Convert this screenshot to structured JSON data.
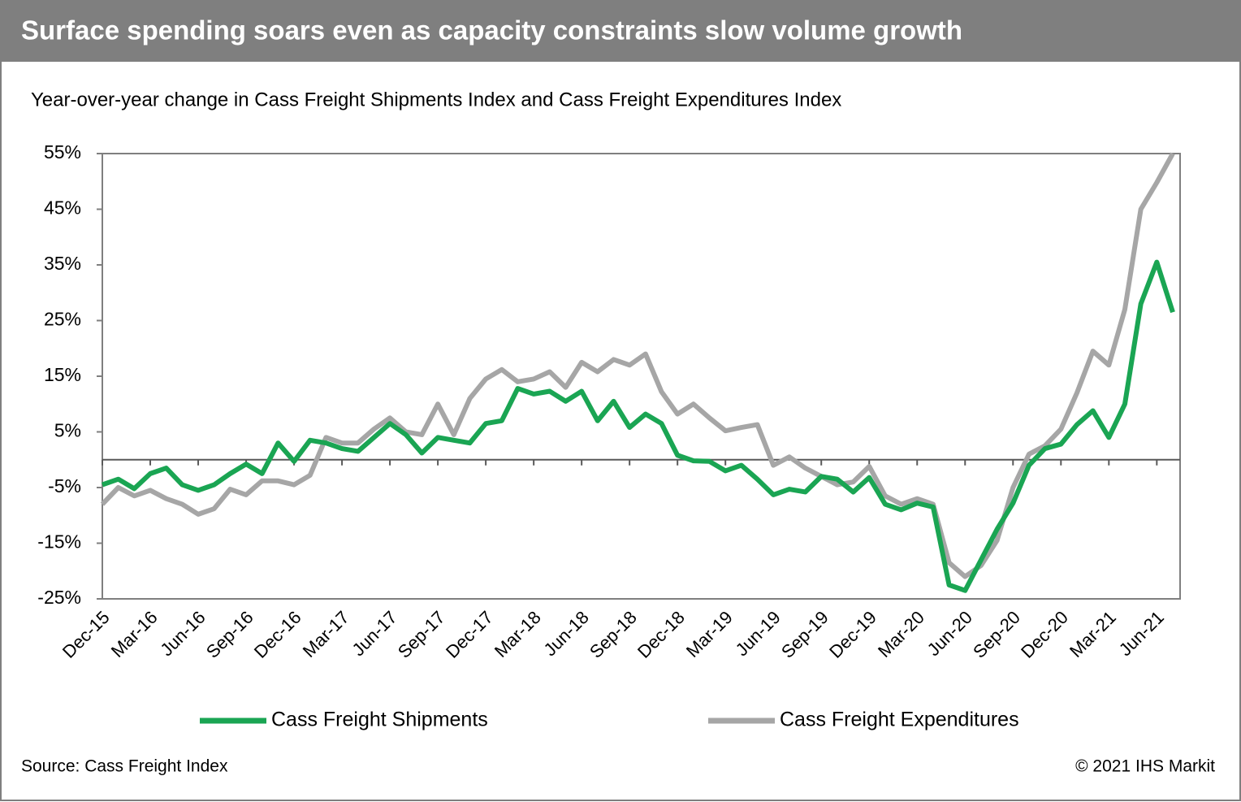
{
  "chart_data": {
    "type": "line",
    "title": "Surface spending soars even as capacity constraints slow volume growth",
    "subtitle": "Year-over-year change in Cass Freight Shipments Index and Cass Freight Expenditures Index",
    "source": "Source: Cass Freight Index",
    "copyright": "© 2021 IHS Markit",
    "categories": [
      "Dec-15",
      null,
      null,
      "Mar-16",
      null,
      null,
      "Jun-16",
      null,
      null,
      "Sep-16",
      null,
      null,
      "Dec-16",
      null,
      null,
      "Mar-17",
      null,
      null,
      "Jun-17",
      null,
      null,
      "Sep-17",
      null,
      null,
      "Dec-17",
      null,
      null,
      "Mar-18",
      null,
      null,
      "Jun-18",
      null,
      null,
      "Sep-18",
      null,
      null,
      "Dec-18",
      null,
      null,
      "Mar-19",
      null,
      null,
      "Jun-19",
      null,
      null,
      "Sep-19",
      null,
      null,
      "Dec-19",
      null,
      null,
      "Mar-20",
      null,
      null,
      "Jun-20",
      null,
      null,
      "Sep-20",
      null,
      null,
      "Dec-20",
      null,
      null,
      "Mar-21",
      null,
      null,
      "Jun-21",
      null
    ],
    "series": [
      {
        "name": "Cass Freight Shipments",
        "color": "#1aa553",
        "values": [
          -4.5,
          -3.5,
          -5.2,
          -2.5,
          -1.5,
          -4.5,
          -5.5,
          -4.5,
          -2.5,
          -0.8,
          -2.5,
          3,
          -0.3,
          3.5,
          3,
          2,
          1.5,
          4,
          6.5,
          4.5,
          1.2,
          4,
          3.5,
          3,
          6.5,
          7,
          12.8,
          11.8,
          12.3,
          10.5,
          12.3,
          7,
          10.5,
          5.8,
          8.2,
          6.5,
          0.8,
          -0.2,
          -0.3,
          -2,
          -1,
          -3.5,
          -6.3,
          -5.3,
          -5.8,
          -3,
          -3.5,
          -5.8,
          -3.2,
          -8,
          -9,
          -7.8,
          -8.5,
          -22.5,
          -23.5,
          -18,
          -12.5,
          -7.8,
          -1,
          2,
          2.8,
          6.3,
          8.8,
          4,
          10,
          28,
          35.5,
          26.5
        ]
      },
      {
        "name": "Cass Freight Expenditures",
        "color": "#a6a6a6",
        "values": [
          -8,
          -5,
          -6.5,
          -5.5,
          -7,
          -8,
          -9.8,
          -8.8,
          -5.3,
          -6.3,
          -3.8,
          -3.8,
          -4.5,
          -2.8,
          4,
          3,
          3,
          5.5,
          7.5,
          5,
          4.5,
          10,
          4.5,
          11,
          14.5,
          16.2,
          14,
          14.5,
          15.8,
          13,
          17.5,
          15.8,
          18,
          17,
          19,
          12.2,
          8.2,
          10,
          7.5,
          5.2,
          5.8,
          6.3,
          -1,
          0.5,
          -1.5,
          -3,
          -4.5,
          -4,
          -1.2,
          -6.5,
          -8,
          -7,
          -8,
          -18.5,
          -21,
          -19,
          -14.5,
          -5,
          1,
          2.5,
          5.5,
          12,
          19.5,
          17,
          27,
          45,
          49.8,
          55
        ]
      }
    ],
    "ylim": [
      -25,
      55
    ],
    "yticks": [
      {
        "value": -25,
        "label": "-25%"
      },
      {
        "value": -15,
        "label": "-15%"
      },
      {
        "value": -5,
        "label": "-5%"
      },
      {
        "value": 5,
        "label": "5%"
      },
      {
        "value": 15,
        "label": "15%"
      },
      {
        "value": 25,
        "label": "25%"
      },
      {
        "value": 35,
        "label": "35%"
      },
      {
        "value": 45,
        "label": "45%"
      },
      {
        "value": 55,
        "label": "55%"
      }
    ]
  }
}
